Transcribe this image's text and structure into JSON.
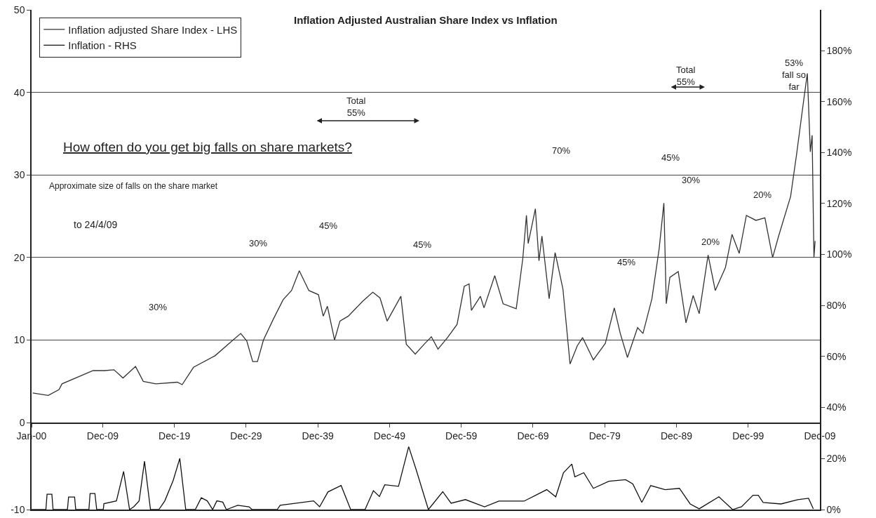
{
  "chart_data": [
    {
      "type": "line",
      "title": "Inflation Adjusted Australian Share Index vs Inflation",
      "annotations": [
        "How often do you get big falls on share markets?",
        "Approximate size of falls on the share market",
        "to 24/4/09",
        "30%",
        "30%",
        "45%",
        "Total\n55%",
        "45%",
        "70%",
        "45%",
        "45%",
        "Total\n55%",
        "30%",
        "20%",
        "20%",
        "53%\nfall so\nfar"
      ],
      "xlim": [
        "1900-01",
        "2009-12"
      ],
      "xticks": [
        {
          "value": "1900-01",
          "label": "Jan-00"
        },
        {
          "value": "1909-12",
          "label": "Dec-09"
        },
        {
          "value": "1919-12",
          "label": "Dec-19"
        },
        {
          "value": "1929-12",
          "label": "Dec-29"
        },
        {
          "value": "1939-12",
          "label": "Dec-39"
        },
        {
          "value": "1949-12",
          "label": "Dec-49"
        },
        {
          "value": "1959-12",
          "label": "Dec-59"
        },
        {
          "value": "1969-12",
          "label": "Dec-69"
        },
        {
          "value": "1979-12",
          "label": "Dec-79"
        },
        {
          "value": "1989-12",
          "label": "Dec-89"
        },
        {
          "value": "1999-12",
          "label": "Dec-99"
        },
        {
          "value": "2009-12",
          "label": "Dec-09"
        }
      ],
      "ylim": [
        0,
        50
      ],
      "yticks": [
        10,
        20,
        30,
        40,
        50
      ],
      "y2lim": [
        34,
        196
      ],
      "y2ticks": [
        {
          "value": 40,
          "label": "40%"
        },
        {
          "value": 60,
          "label": "60%"
        },
        {
          "value": 80,
          "label": "80%"
        },
        {
          "value": 100,
          "label": "100%"
        },
        {
          "value": 120,
          "label": "120%"
        },
        {
          "value": 140,
          "label": "140%"
        },
        {
          "value": 160,
          "label": "160%"
        },
        {
          "value": 180,
          "label": "180%"
        }
      ],
      "grid": "y",
      "legend": "top left",
      "marker": "none",
      "line_style": "solid",
      "series": [
        {
          "name": "Inflation adjusted Share Index - LHS",
          "color": "#333333",
          "x": [
            "1900-03",
            "1902-05",
            "1903-11",
            "1904-04",
            "1908-08",
            "1910-03",
            "1911-07",
            "1912-10",
            "1914-07",
            "1915-08",
            "1917-05",
            "1920-05",
            "1921-01",
            "1922-08",
            "1925-08",
            "1927-11",
            "1929-03",
            "1930-01",
            "1930-11",
            "1931-07",
            "1932-05",
            "1933-10",
            "1935-02",
            "1936-04",
            "1937-05",
            "1938-09",
            "1940-01",
            "1940-09",
            "1941-04",
            "1942-04",
            "1943-01",
            "1944-03",
            "1946-03",
            "1947-08",
            "1948-08",
            "1949-08",
            "1951-07",
            "1952-04",
            "1953-07",
            "1954-10",
            "1955-10",
            "1956-09",
            "1958-01",
            "1959-05",
            "1960-05",
            "1961-01",
            "1961-05",
            "1962-08",
            "1963-02",
            "1964-08",
            "1965-10",
            "1967-08",
            "1968-07",
            "1969-01",
            "1969-04",
            "1970-04",
            "1970-10",
            "1971-03",
            "1972-03",
            "1973-01",
            "1974-02",
            "1975-02",
            "1976-02",
            "1976-11",
            "1978-05",
            "1980-01",
            "1981-04",
            "1982-02",
            "1983-02",
            "1984-07",
            "1985-04",
            "1986-07",
            "1987-07",
            "1988-03",
            "1988-07",
            "1989-01",
            "1990-03",
            "1991-04",
            "1992-04",
            "1993-02",
            "1994-05",
            "1995-05",
            "1996-10",
            "1997-09",
            "1998-09",
            "1999-09",
            "2001-01",
            "2002-04",
            "2003-05",
            "2004-03",
            "2005-11",
            "2006-09",
            "2007-09",
            "2008-03",
            "2008-08",
            "2008-11",
            "2009-02",
            "2009-04"
          ],
          "values": [
            3.6,
            3.3,
            4.0,
            4.7,
            6.3,
            6.3,
            6.4,
            5.4,
            6.8,
            5.0,
            4.7,
            4.9,
            4.6,
            6.7,
            8.1,
            9.8,
            10.8,
            9.9,
            7.4,
            7.4,
            10.0,
            12.6,
            14.9,
            16.0,
            18.4,
            16.0,
            15.5,
            12.9,
            14.1,
            10.0,
            12.3,
            12.9,
            14.7,
            15.8,
            15.1,
            12.3,
            15.3,
            9.5,
            8.3,
            9.5,
            10.4,
            8.9,
            10.3,
            11.9,
            16.5,
            16.8,
            13.6,
            15.3,
            13.9,
            17.8,
            14.4,
            13.8,
            19.9,
            25.1,
            21.7,
            25.9,
            19.6,
            22.6,
            15.0,
            20.6,
            16.2,
            7.1,
            9.3,
            10.3,
            7.6,
            9.6,
            13.9,
            10.8,
            7.9,
            11.5,
            10.8,
            15.0,
            21.0,
            26.6,
            14.4,
            17.6,
            18.3,
            12.1,
            15.4,
            13.2,
            20.3,
            16.0,
            18.8,
            22.8,
            20.5,
            25.1,
            24.5,
            24.8,
            20.0,
            22.6,
            27.4,
            32.5,
            39.1,
            42.3,
            32.8,
            34.8,
            20.0,
            22.0
          ]
        }
      ]
    },
    {
      "type": "line",
      "xlim": [
        "1900-01",
        "2009-12"
      ],
      "ylim": [
        -10,
        0
      ],
      "yticks": [
        -10,
        0
      ],
      "y2lim": [
        0,
        34
      ],
      "y2ticks": [
        {
          "value": 0,
          "label": "0%"
        },
        {
          "value": 20,
          "label": "20%"
        }
      ],
      "tick_labels": "y",
      "marker": "none",
      "line_style": "solid",
      "series": [
        {
          "name": "Inflation - RHS",
          "color": "#111111",
          "axis": "y2",
          "x": [
            "1900-01",
            "1902-01",
            "1902-03",
            "1902-11",
            "1903-01",
            "1905-01",
            "1905-03",
            "1906-01",
            "1906-03",
            "1908-01",
            "1908-03",
            "1908-11",
            "1909-02",
            "1910-01",
            "1910-02",
            "1911-11",
            "1912-11",
            "1913-09",
            "1914-04",
            "1915-01",
            "1915-10",
            "1916-08",
            "1917-10",
            "1918-08",
            "1919-10",
            "1920-09",
            "1921-07",
            "1922-11",
            "1923-09",
            "1924-07",
            "1925-04",
            "1925-11",
            "1926-09",
            "1927-03",
            "1928-10",
            "1930-05",
            "1930-10",
            "1934-04",
            "1934-09",
            "1939-05",
            "1940-03",
            "1941-05",
            "1943-03",
            "1944-07",
            "1946-07",
            "1947-09",
            "1948-07",
            "1949-04",
            "1951-03",
            "1952-08",
            "1953-08",
            "1955-05",
            "1957-05",
            "1958-07",
            "1960-07",
            "1963-03",
            "1965-03",
            "1968-09",
            "1971-11",
            "1973-02",
            "1974-03",
            "1975-05",
            "1975-10",
            "1977-01",
            "1978-05",
            "1980-07",
            "1982-11",
            "1983-11",
            "1985-02",
            "1986-05",
            "1988-05",
            "1990-05",
            "1991-11",
            "1993-02",
            "1995-11",
            "1997-10",
            "1999-01",
            "2000-08",
            "2001-05",
            "2002-01",
            "2004-07",
            "2006-11",
            "2008-05",
            "2009-01"
          ],
          "values": [
            0,
            0,
            6.0,
            6.0,
            0,
            0,
            4.9,
            4.9,
            0,
            0,
            6.3,
            6.3,
            0,
            0,
            2.3,
            3.4,
            14.9,
            0,
            1.1,
            3.4,
            18.9,
            0,
            0,
            3.4,
            11.4,
            20.0,
            0,
            0,
            4.6,
            3.4,
            0,
            3.4,
            2.9,
            0,
            1.7,
            1.1,
            0,
            0,
            1.7,
            3.4,
            1.1,
            6.9,
            9.4,
            0,
            0,
            7.4,
            5.1,
            9.7,
            9.1,
            24.6,
            16.0,
            0,
            7.0,
            2.5,
            3.9,
            1.1,
            3.3,
            3.3,
            7.8,
            5.0,
            14.4,
            17.8,
            12.8,
            14.4,
            8.3,
            11.1,
            11.7,
            10.0,
            2.8,
            9.4,
            7.8,
            8.3,
            2.2,
            0.3,
            5.0,
            0,
            1.1,
            5.6,
            5.6,
            2.8,
            2.2,
            3.9,
            4.4,
            0.3
          ]
        }
      ]
    }
  ]
}
